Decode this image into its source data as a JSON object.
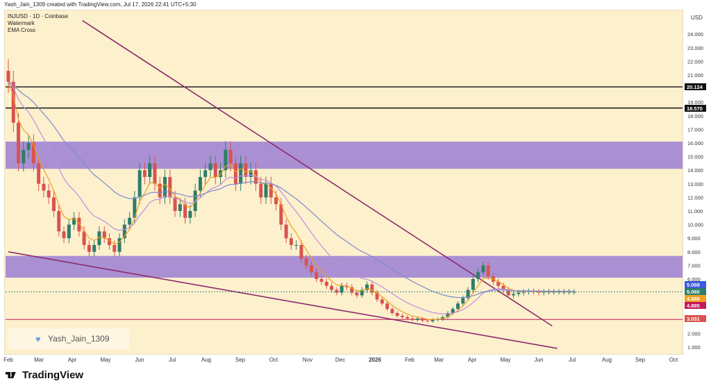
{
  "header": {
    "attribution": "Yash_Jain_1309 created with TradingView.com, Jul 17, 2026 22:41 UTC+5:30"
  },
  "legend": {
    "line1": "INJUSD · 1D · Coinbase",
    "line2": "Watermark",
    "line3": "EMA Cross"
  },
  "watermark": {
    "label": "Yash_Jain_1309",
    "icon": "heart-icon"
  },
  "footer": {
    "brand": "TradingView",
    "icon": "tradingview-logo-icon"
  },
  "colors": {
    "background": "#fdf0cd",
    "zone": "#9b7fd4",
    "trendline": "#8b2a6b",
    "ema_fast": "#f0a020",
    "ema_mid": "#c08de0",
    "ema_slow": "#7b8bd0",
    "candle_up": "#2e7d6b",
    "candle_down": "#d9534f",
    "level_line": "#111111",
    "support_line": "#c2185b"
  },
  "chart_data": {
    "type": "candlestick",
    "title": "INJUSD · 1D · Coinbase",
    "currency_label": "USD",
    "ylim": [
      0.5,
      25
    ],
    "y_ticks": [
      "24.000",
      "23.000",
      "22.000",
      "21.000",
      "19.000",
      "18.000",
      "17.000",
      "16.000",
      "15.000",
      "14.000",
      "13.000",
      "12.000",
      "11.000",
      "10.000",
      "9.000",
      "8.000",
      "7.000",
      "6.000",
      "4.000",
      "3.000",
      "2.000",
      "1.000"
    ],
    "x_ticks": [
      "Feb",
      "Mar",
      "Apr",
      "May",
      "Jun",
      "Jul",
      "Aug",
      "Sep",
      "Oct",
      "Nov",
      "Dec",
      "2026",
      "Feb",
      "Mar",
      "Apr",
      "May",
      "Jun",
      "Jul",
      "Aug",
      "Sep",
      "Oct"
    ],
    "price_labels": [
      {
        "value": "20.124",
        "color": "#111111"
      },
      {
        "value": "18.570",
        "color": "#111111"
      },
      {
        "value": "5.098",
        "color": "#3b5bdb"
      },
      {
        "value": "5.060",
        "color": "#2e7d6b"
      },
      {
        "value": "4.886",
        "color": "#f0a020"
      },
      {
        "value": "4.885",
        "color": "#c2185b"
      },
      {
        "value": "3.031",
        "color": "#d9534f"
      }
    ],
    "horizontal_levels": [
      20.124,
      18.57,
      3.031
    ],
    "zones": [
      {
        "from": 14.1,
        "to": 16.1
      },
      {
        "from": 6.1,
        "to": 7.7
      }
    ],
    "trendlines": [
      {
        "from": {
          "t": 2.2,
          "v": 25.0
        },
        "to": {
          "t": 16.15,
          "v": 2.55
        }
      },
      {
        "from": {
          "t": 0,
          "v": 8.0
        },
        "to": {
          "t": 16.3,
          "v": 0.9
        }
      }
    ],
    "series": [
      {
        "name": "INJUSD",
        "type": "candlestick",
        "t": [
          0,
          0.15,
          0.3,
          0.45,
          0.6,
          0.75,
          0.9,
          1.05,
          1.2,
          1.35,
          1.5,
          1.65,
          1.8,
          1.95,
          2.1,
          2.25,
          2.4,
          2.55,
          2.7,
          2.85,
          3.0,
          3.15,
          3.3,
          3.45,
          3.6,
          3.75,
          3.9,
          4.05,
          4.2,
          4.35,
          4.5,
          4.65,
          4.8,
          4.95,
          5.1,
          5.25,
          5.4,
          5.55,
          5.7,
          5.85,
          6.0,
          6.15,
          6.3,
          6.45,
          6.6,
          6.75,
          6.9,
          7.05,
          7.2,
          7.35,
          7.5,
          7.65,
          7.8,
          7.95,
          8.1,
          8.25,
          8.4,
          8.55,
          8.7,
          8.85,
          9.0,
          9.15,
          9.3,
          9.45,
          9.6,
          9.75,
          9.9,
          10.05,
          10.2,
          10.35,
          10.5,
          10.65,
          10.8,
          10.95,
          11.1,
          11.25,
          11.4,
          11.55,
          11.7,
          11.85,
          12.0,
          12.15,
          12.3,
          12.45,
          12.6,
          12.75,
          12.9,
          13.05,
          13.2,
          13.35,
          13.5,
          13.65,
          13.8,
          13.95,
          14.1,
          14.25,
          14.4,
          14.55,
          14.7,
          14.85,
          15.0,
          15.15,
          15.3,
          15.45,
          15.6,
          15.75,
          15.9,
          16.05,
          16.2,
          16.35,
          16.5,
          16.65,
          16.8
        ],
        "close": [
          20.5,
          17.5,
          14.5,
          15.5,
          16.0,
          14.5,
          13.0,
          12.5,
          12.0,
          11.0,
          9.5,
          9.0,
          10.0,
          10.5,
          9.5,
          8.5,
          8.0,
          8.5,
          9.5,
          9.0,
          8.5,
          8.0,
          9.0,
          10.0,
          10.5,
          12.0,
          14.0,
          13.5,
          14.5,
          13.0,
          12.0,
          13.5,
          12.0,
          11.0,
          11.5,
          10.5,
          11.0,
          12.5,
          13.5,
          14.0,
          14.5,
          13.5,
          14.0,
          15.5,
          14.5,
          13.0,
          14.5,
          13.5,
          14.0,
          13.0,
          12.0,
          13.0,
          12.0,
          11.5,
          10.0,
          9.0,
          8.5,
          8.5,
          7.5,
          7.0,
          6.5,
          6.0,
          5.8,
          5.5,
          5.2,
          5.0,
          5.5,
          5.4,
          5.0,
          4.8,
          5.2,
          5.6,
          5.0,
          4.5,
          4.2,
          3.8,
          3.5,
          3.3,
          3.2,
          3.1,
          3.0,
          3.1,
          2.95,
          2.9,
          3.0,
          3.05,
          3.2,
          3.5,
          3.8,
          4.2,
          4.6,
          5.2,
          6.0,
          6.5,
          7.0,
          6.2,
          5.8,
          5.5,
          5.2,
          4.8,
          4.9,
          5.0,
          5.05,
          5.1,
          5.06,
          5.0,
          5.06,
          5.06,
          5.06,
          5.06,
          5.06,
          5.06,
          5.06
        ]
      },
      {
        "name": "EMA fast",
        "type": "line"
      },
      {
        "name": "EMA mid",
        "type": "line"
      },
      {
        "name": "EMA slow",
        "type": "line"
      }
    ]
  }
}
